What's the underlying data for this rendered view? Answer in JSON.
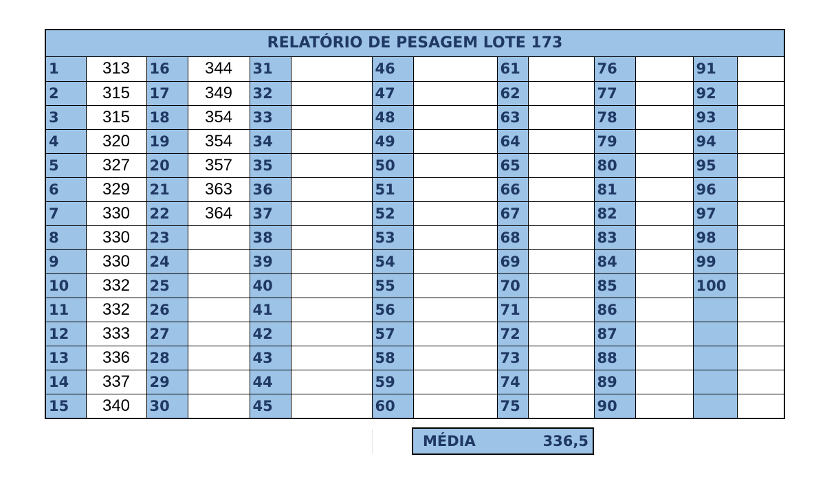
{
  "title": "RELATÓRIO DE PESAGEM LOTE 173",
  "columns": [
    {
      "numbers": [
        "1",
        "2",
        "3",
        "4",
        "5",
        "6",
        "7",
        "8",
        "9",
        "10",
        "11",
        "12",
        "13",
        "14",
        "15"
      ],
      "values": [
        "313",
        "315",
        "315",
        "320",
        "327",
        "329",
        "330",
        "330",
        "330",
        "332",
        "332",
        "333",
        "336",
        "337",
        "340"
      ]
    },
    {
      "numbers": [
        "16",
        "17",
        "18",
        "19",
        "20",
        "21",
        "22",
        "23",
        "24",
        "25",
        "26",
        "27",
        "28",
        "29",
        "30"
      ],
      "values": [
        "344",
        "349",
        "354",
        "354",
        "357",
        "363",
        "364",
        "",
        "",
        "",
        "",
        "",
        "",
        "",
        ""
      ]
    },
    {
      "numbers": [
        "31",
        "32",
        "33",
        "34",
        "35",
        "36",
        "37",
        "38",
        "39",
        "40",
        "41",
        "42",
        "43",
        "44",
        "45"
      ],
      "values": [
        "",
        "",
        "",
        "",
        "",
        "",
        "",
        "",
        "",
        "",
        "",
        "",
        "",
        "",
        ""
      ]
    },
    {
      "numbers": [
        "46",
        "47",
        "48",
        "49",
        "50",
        "51",
        "52",
        "53",
        "54",
        "55",
        "56",
        "57",
        "58",
        "59",
        "60"
      ],
      "values": [
        "",
        "",
        "",
        "",
        "",
        "",
        "",
        "",
        "",
        "",
        "",
        "",
        "",
        "",
        ""
      ]
    },
    {
      "numbers": [
        "61",
        "62",
        "63",
        "64",
        "65",
        "66",
        "67",
        "68",
        "69",
        "70",
        "71",
        "72",
        "73",
        "74",
        "75"
      ],
      "values": [
        "",
        "",
        "",
        "",
        "",
        "",
        "",
        "",
        "",
        "",
        "",
        "",
        "",
        "",
        ""
      ]
    },
    {
      "numbers": [
        "76",
        "77",
        "78",
        "79",
        "80",
        "81",
        "82",
        "83",
        "84",
        "85",
        "86",
        "87",
        "88",
        "89",
        "90"
      ],
      "values": [
        "",
        "",
        "",
        "",
        "",
        "",
        "",
        "",
        "",
        "",
        "",
        "",
        "",
        "",
        ""
      ]
    },
    {
      "numbers": [
        "91",
        "92",
        "93",
        "94",
        "95",
        "96",
        "97",
        "98",
        "99",
        "100",
        "",
        "",
        "",
        "",
        ""
      ],
      "values": [
        "",
        "",
        "",
        "",
        "",
        "",
        "",
        "",
        "",
        "",
        "",
        "",
        "",
        "",
        ""
      ]
    }
  ],
  "media": {
    "label": "MÉDIA",
    "value": "336,5"
  },
  "colors": {
    "header_fill": "#9dc3e6",
    "header_text": "#1f3864",
    "border": "#000000"
  }
}
